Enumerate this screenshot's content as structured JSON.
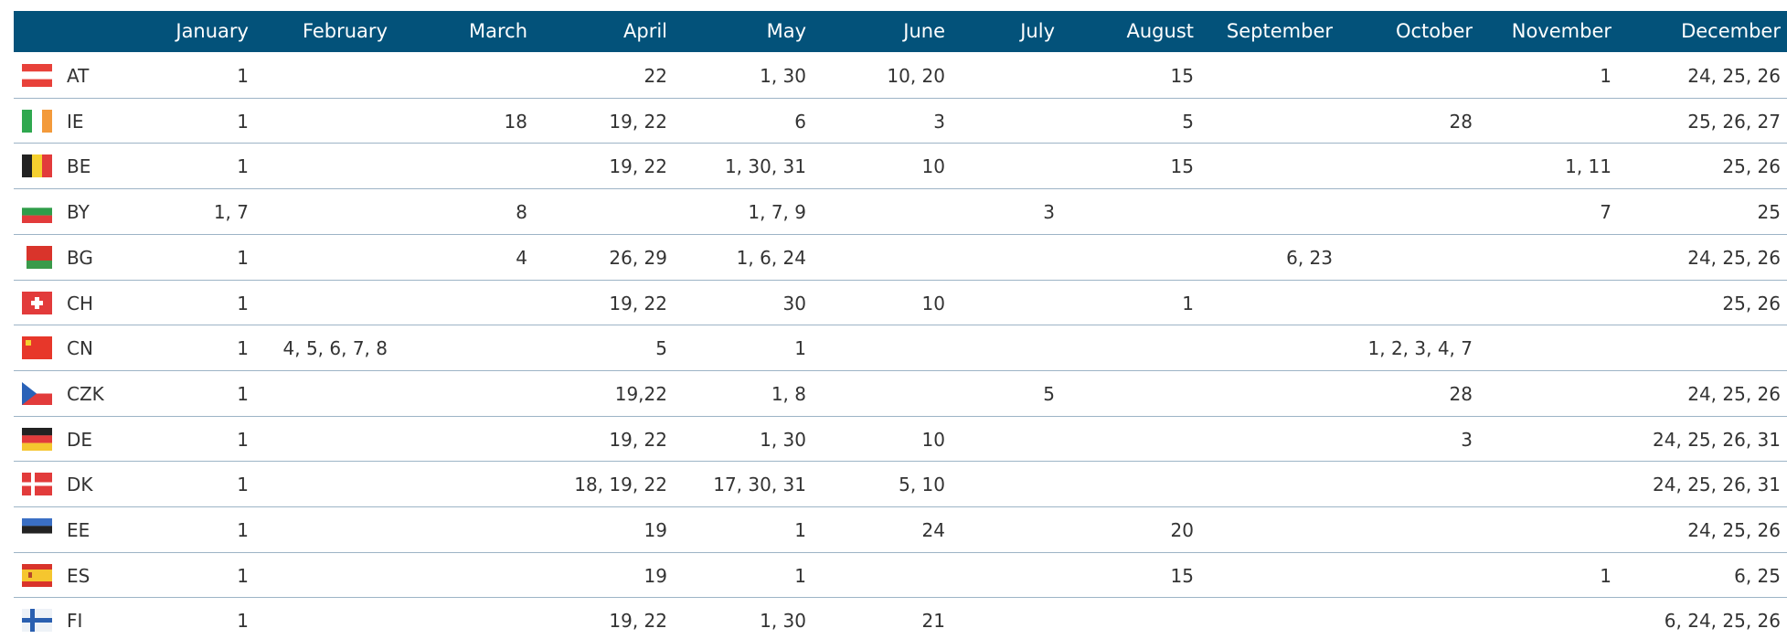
{
  "table": {
    "header": [
      "January",
      "February",
      "March",
      "April",
      "May",
      "June",
      "July",
      "August",
      "September",
      "October",
      "November",
      "December"
    ],
    "rows": [
      {
        "code": "AT",
        "cells": [
          1,
          null,
          null,
          22,
          "1, 30",
          "10, 20",
          null,
          15,
          null,
          null,
          1,
          "24, 25, 26"
        ]
      },
      {
        "code": "IE",
        "cells": [
          1,
          null,
          18,
          "19, 22",
          6,
          3,
          null,
          5,
          null,
          28,
          null,
          "25, 26, 27"
        ]
      },
      {
        "code": "BE",
        "cells": [
          1,
          null,
          null,
          "19, 22",
          "1, 30, 31",
          10,
          null,
          15,
          null,
          null,
          "1, 11",
          "25, 26"
        ]
      },
      {
        "code": "BY",
        "cells": [
          "1, 7",
          null,
          8,
          null,
          "1, 7, 9",
          null,
          3,
          null,
          null,
          null,
          7,
          25
        ]
      },
      {
        "code": "BG",
        "cells": [
          1,
          null,
          4,
          "26, 29",
          "1, 6, 24",
          null,
          null,
          null,
          "6, 23",
          null,
          null,
          "24, 25, 26"
        ]
      },
      {
        "code": "CH",
        "cells": [
          1,
          null,
          null,
          "19, 22",
          30,
          10,
          null,
          1,
          null,
          null,
          null,
          "25, 26"
        ]
      },
      {
        "code": "CN",
        "cells": [
          1,
          "4, 5, 6, 7, 8",
          null,
          5,
          1,
          null,
          null,
          null,
          null,
          "1, 2, 3, 4, 7",
          null,
          null
        ]
      },
      {
        "code": "CZK",
        "cells": [
          1,
          null,
          null,
          "19,22",
          "1, 8",
          null,
          5,
          null,
          null,
          28,
          null,
          "24, 25, 26"
        ]
      },
      {
        "code": "DE",
        "cells": [
          1,
          null,
          null,
          "19, 22",
          "1, 30",
          10,
          null,
          null,
          null,
          3,
          null,
          "24, 25, 26, 31"
        ]
      },
      {
        "code": "DK",
        "cells": [
          1,
          null,
          null,
          "18, 19, 22",
          "17, 30, 31",
          "5, 10",
          null,
          null,
          null,
          null,
          null,
          "24, 25, 26, 31"
        ]
      },
      {
        "code": "EE",
        "cells": [
          1,
          null,
          null,
          19,
          1,
          24,
          null,
          20,
          null,
          null,
          null,
          "24, 25, 26"
        ]
      },
      {
        "code": "ES",
        "cells": [
          1,
          null,
          null,
          19,
          1,
          null,
          null,
          15,
          null,
          null,
          1,
          "6, 25"
        ]
      },
      {
        "code": "FI",
        "cells": [
          1,
          null,
          null,
          "19, 22",
          "1, 30",
          21,
          null,
          null,
          null,
          null,
          null,
          "6, 24, 25, 26"
        ]
      }
    ]
  }
}
